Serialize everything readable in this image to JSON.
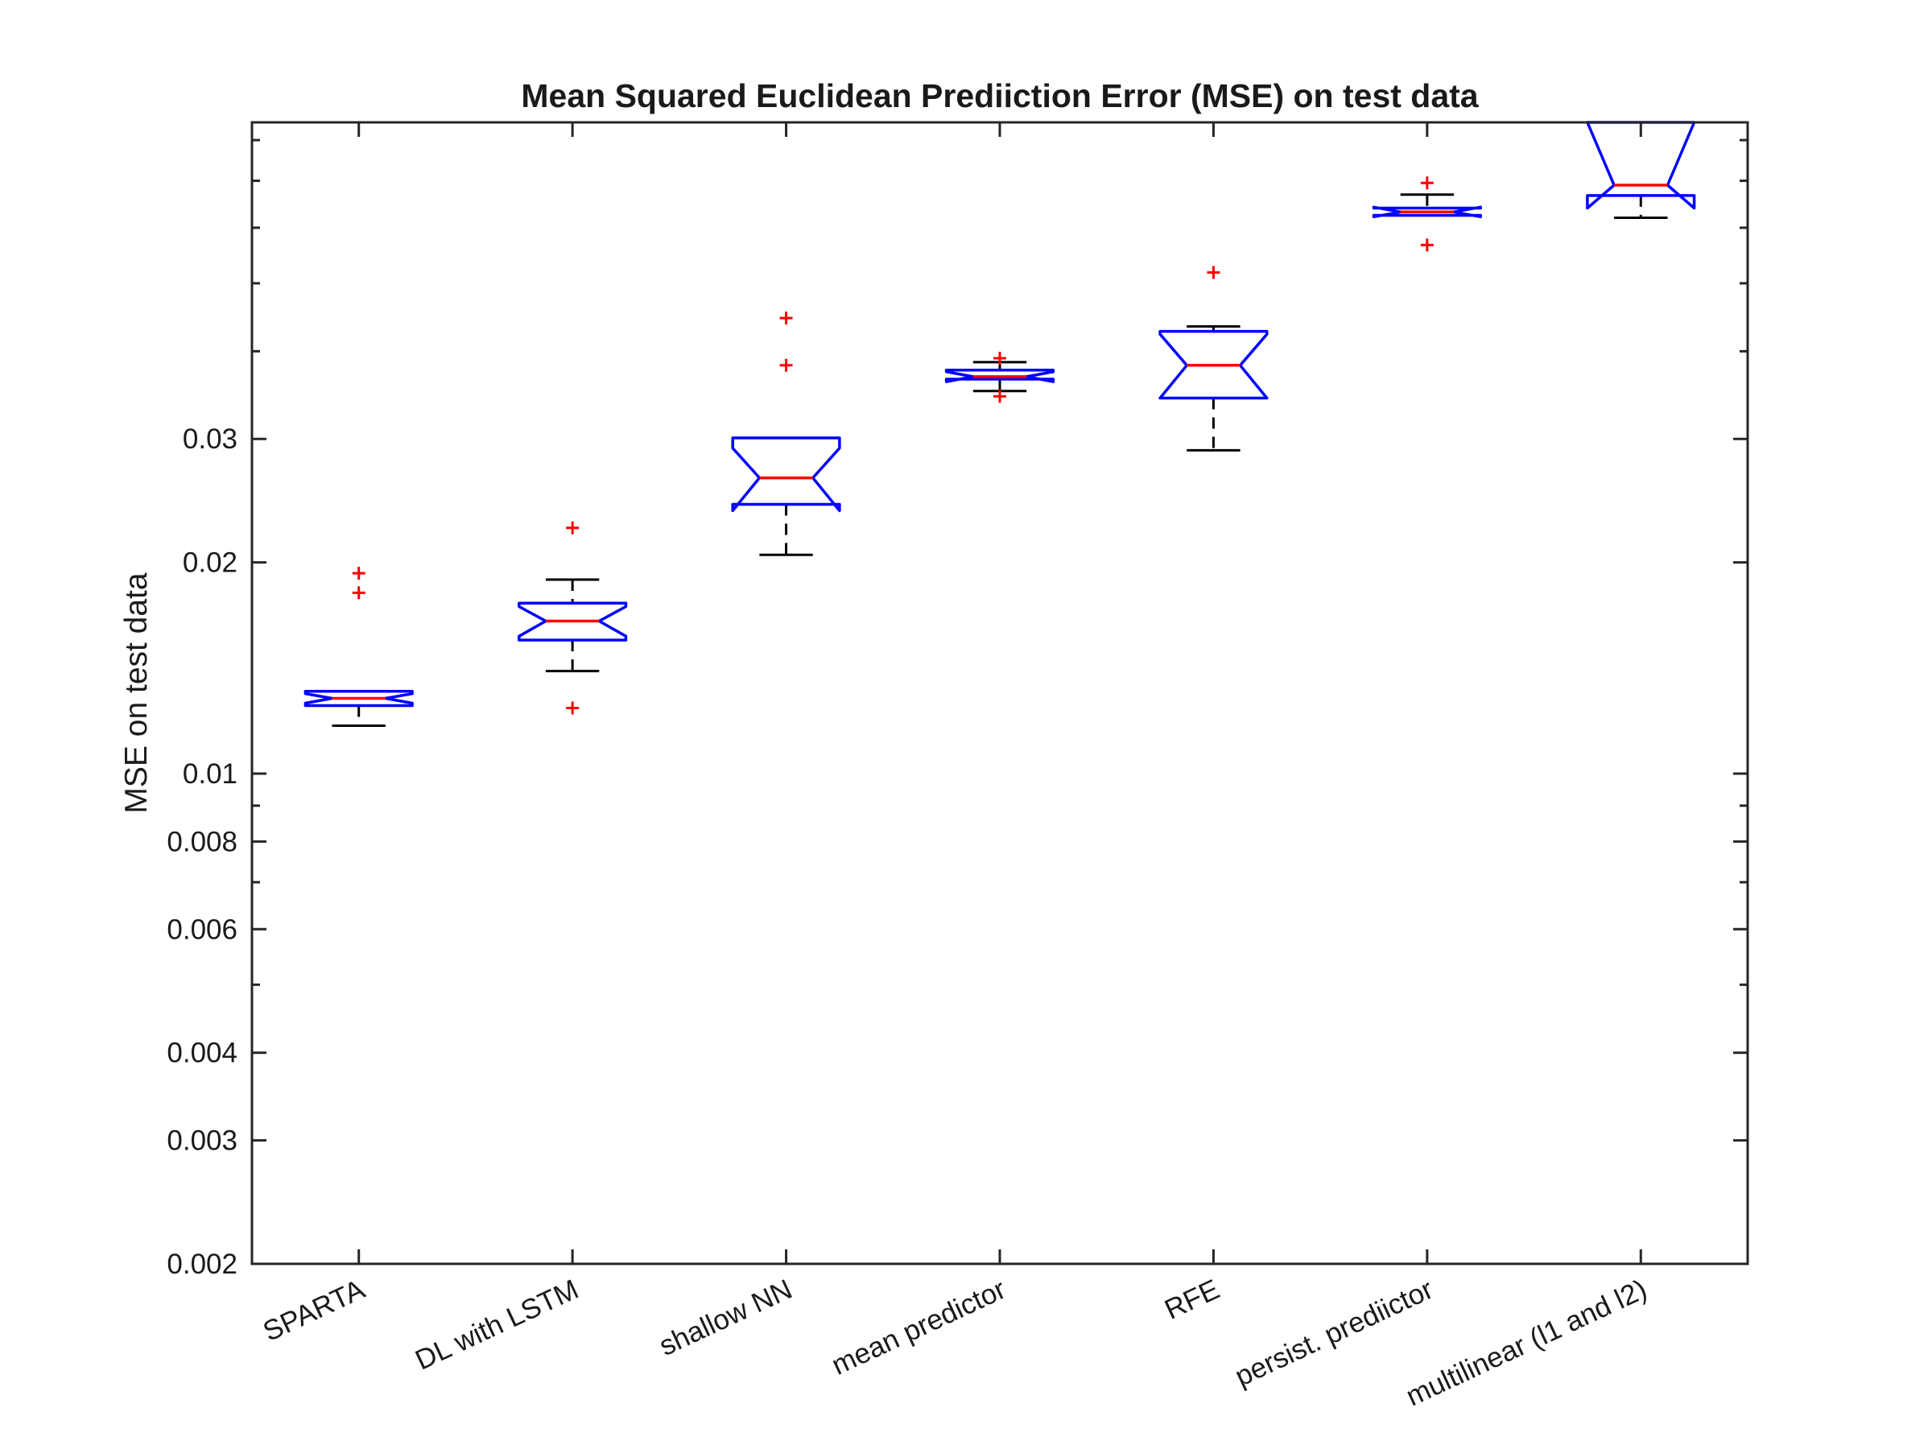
{
  "chart_data": {
    "type": "boxplot",
    "title": "Mean Squared Euclidean Prediiction Error (MSE) on test data",
    "xlabel": "",
    "ylabel": "MSE on test data",
    "yscale": "log",
    "ylim": [
      0.002,
      0.0848
    ],
    "yticks": [
      0.002,
      0.003,
      0.004,
      0.006,
      0.008,
      0.01,
      0.02,
      0.03
    ],
    "ytick_labels": [
      "0.002",
      "0.003",
      "0.004",
      "0.006",
      "0.008",
      "0.01",
      "0.02",
      "0.03"
    ],
    "y_minor_ticks": [
      0.005,
      0.007,
      0.009,
      0.04,
      0.05,
      0.06,
      0.07,
      0.08
    ],
    "notched": true,
    "grid": false,
    "legend": "none",
    "colors": {
      "box": "#0000ff",
      "median": "#ff0000",
      "whisker": "#000000",
      "outlier": "#ff0000",
      "axes": "#262626"
    },
    "categories": [
      "SPARTA",
      "DL with LSTM",
      "shallow NN",
      "mean predictor",
      "RFE",
      "persist. prediictor",
      "multilinear (l1 and l2)"
    ],
    "boxes": [
      {
        "q1": 0.0125,
        "median": 0.0128,
        "q3": 0.0131,
        "notch_low": 0.0126,
        "notch_high": 0.013,
        "whisker_low": 0.0117,
        "whisker_high": 0.0131,
        "outliers": [
          0.0193,
          0.0181
        ]
      },
      {
        "q1": 0.0155,
        "median": 0.0165,
        "q3": 0.0175,
        "notch_low": 0.0157,
        "notch_high": 0.0173,
        "whisker_low": 0.014,
        "whisker_high": 0.0189,
        "outliers": [
          0.0224,
          0.0124
        ]
      },
      {
        "q1": 0.0242,
        "median": 0.0264,
        "q3": 0.0301,
        "notch_low": 0.0237,
        "notch_high": 0.0291,
        "whisker_low": 0.0205,
        "whisker_high": 0.0301,
        "outliers": [
          0.0446,
          0.0382
        ]
      },
      {
        "q1": 0.0365,
        "median": 0.0368,
        "q3": 0.0376,
        "notch_low": 0.0362,
        "notch_high": 0.0374,
        "whisker_low": 0.0351,
        "whisker_high": 0.0386,
        "outliers": [
          0.0391,
          0.0345
        ]
      },
      {
        "q1": 0.0343,
        "median": 0.0382,
        "q3": 0.0427,
        "notch_low": 0.0343,
        "notch_high": 0.0423,
        "whisker_low": 0.0289,
        "whisker_high": 0.0434,
        "outliers": [
          0.0518
        ]
      },
      {
        "q1": 0.0625,
        "median": 0.0632,
        "q3": 0.064,
        "notch_low": 0.0622,
        "notch_high": 0.0642,
        "whisker_low": 0.0625,
        "whisker_high": 0.0669,
        "outliers": [
          0.0695,
          0.0567
        ]
      },
      {
        "q1": 0.0667,
        "median": 0.069,
        "q3": 0.0848,
        "notch_low": 0.064,
        "notch_high": 0.0848,
        "whisker_low": 0.062,
        "whisker_high": 0.0848,
        "outliers": []
      }
    ]
  }
}
